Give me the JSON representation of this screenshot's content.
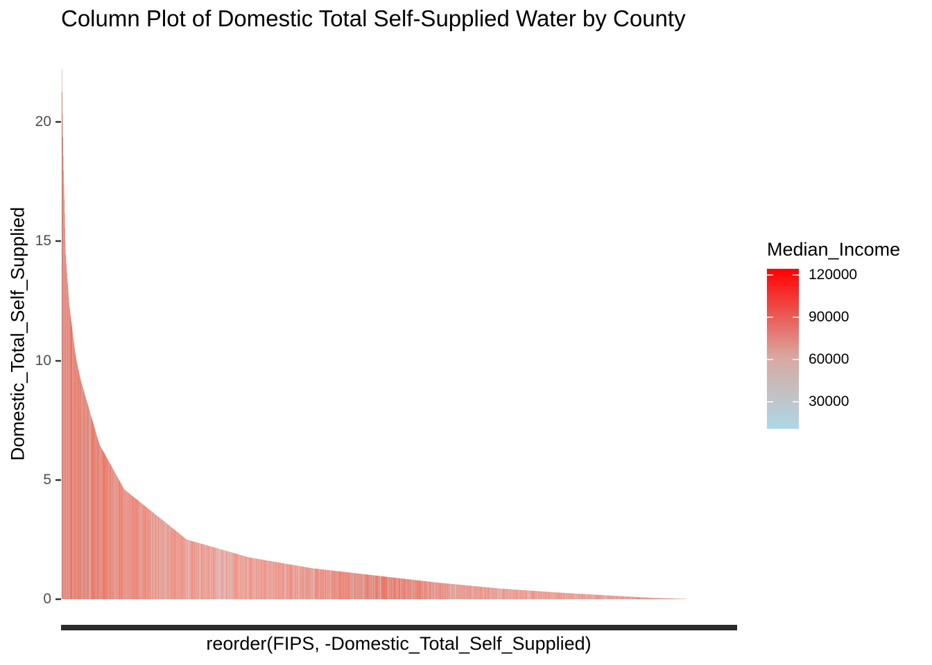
{
  "chart_data": {
    "type": "bar",
    "title": "Column Plot of Domestic Total Self-Supplied Water by County",
    "xlabel": "reorder(FIPS, -Domestic_Total_Self_Supplied)",
    "ylabel": "Domestic_Total_Self_Supplied",
    "ylim": [
      0,
      22.2
    ],
    "y_ticks": [
      "0",
      "5",
      "10",
      "15",
      "20"
    ],
    "x_ticks": [],
    "n_bars": 1800,
    "sorted_values_profile": {
      "rank_fraction": [
        0,
        0.002,
        0.006,
        0.012,
        0.022,
        0.03,
        0.06,
        0.1,
        0.2,
        0.3,
        0.4,
        0.5,
        0.6,
        0.7,
        0.8,
        0.9,
        0.95,
        1.0
      ],
      "value": [
        22.2,
        18.8,
        14.5,
        12.3,
        10.2,
        9.2,
        6.5,
        4.6,
        2.5,
        1.75,
        1.3,
        1.0,
        0.7,
        0.45,
        0.27,
        0.12,
        0.05,
        0.01
      ]
    },
    "legend": {
      "title": "Median_Income",
      "type": "colorbar",
      "range": [
        15000,
        125000
      ],
      "ticks": [
        "120000",
        "90000",
        "60000",
        "30000"
      ],
      "colors": {
        "low": "#add8e6",
        "high": "#ff0000"
      }
    }
  }
}
